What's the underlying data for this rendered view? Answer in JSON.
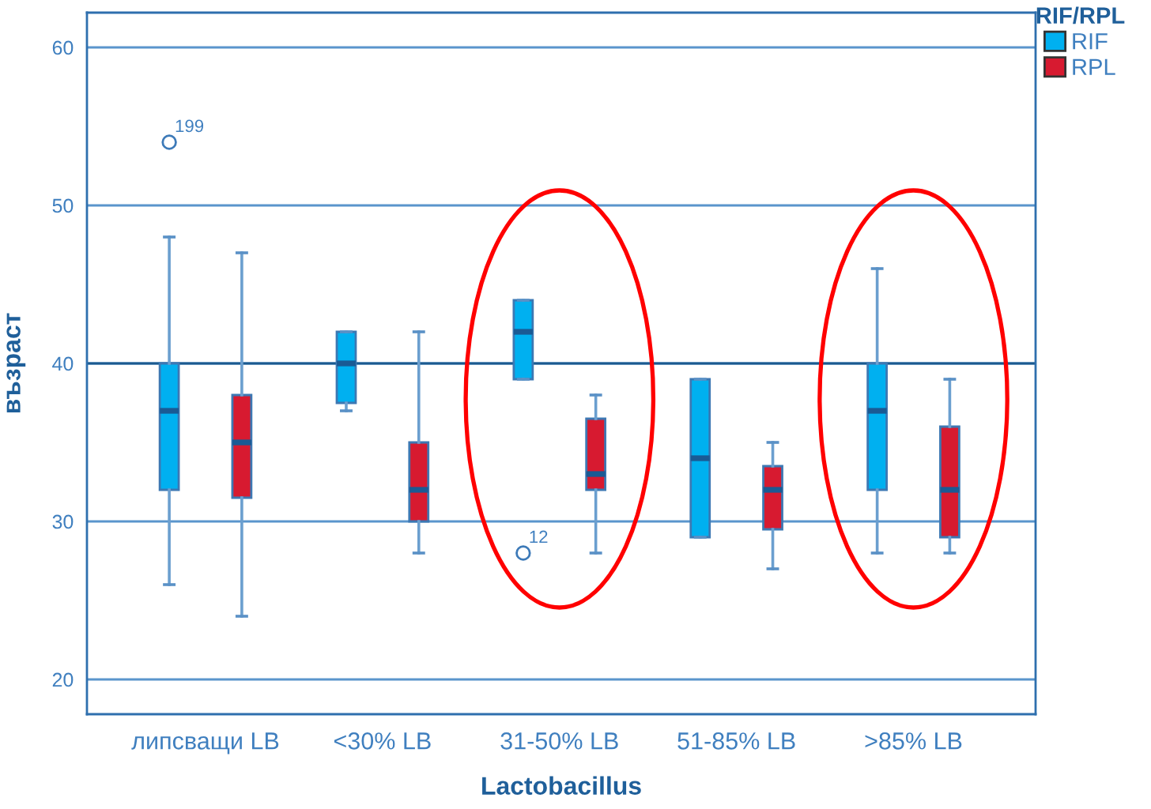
{
  "chart_data": {
    "type": "box",
    "xlabel": "Lactobacillus",
    "ylabel": "възраст",
    "legend_title": "RIF/RPL",
    "categories": [
      "липсващи LB",
      "<30% LB",
      "31-50% LB",
      "51-85% LB",
      ">85% LB"
    ],
    "series": [
      {
        "name": "RIF",
        "color": "#00b0f0",
        "boxes": [
          {
            "low": 26,
            "q1": 32,
            "median": 37,
            "q3": 40,
            "high": 48,
            "outliers": [
              54
            ]
          },
          {
            "low": 37,
            "q1": 37.5,
            "median": 40,
            "q3": 42,
            "high": 42
          },
          {
            "low": 39,
            "q1": 39,
            "median": 42,
            "q3": 44,
            "high": 44,
            "outliers": [
              28
            ]
          },
          {
            "low": 29,
            "q1": 29,
            "median": 34,
            "q3": 39,
            "high": 39
          },
          {
            "low": 28,
            "q1": 32,
            "median": 37,
            "q3": 40,
            "high": 46
          }
        ]
      },
      {
        "name": "RPL",
        "color": "#d71a30",
        "boxes": [
          {
            "low": 24,
            "q1": 31.5,
            "median": 35,
            "q3": 38,
            "high": 47
          },
          {
            "low": 28,
            "q1": 30,
            "median": 32,
            "q3": 35,
            "high": 42
          },
          {
            "low": 28,
            "q1": 32,
            "median": 33,
            "q3": 36.5,
            "high": 38
          },
          {
            "low": 27,
            "q1": 29.5,
            "median": 32,
            "q3": 33.5,
            "high": 35
          },
          {
            "low": 28,
            "q1": 29,
            "median": 32,
            "q3": 36,
            "high": 39
          }
        ]
      }
    ],
    "ylim": [
      17.8,
      62.2
    ],
    "yticks": [
      20,
      30,
      40,
      50,
      60
    ],
    "grid": "y",
    "ref_lines": [
      {
        "axis": "y",
        "value": 40,
        "color": "#1b5a8f"
      }
    ],
    "annotations": [
      "199",
      "12"
    ],
    "legend": "right"
  }
}
